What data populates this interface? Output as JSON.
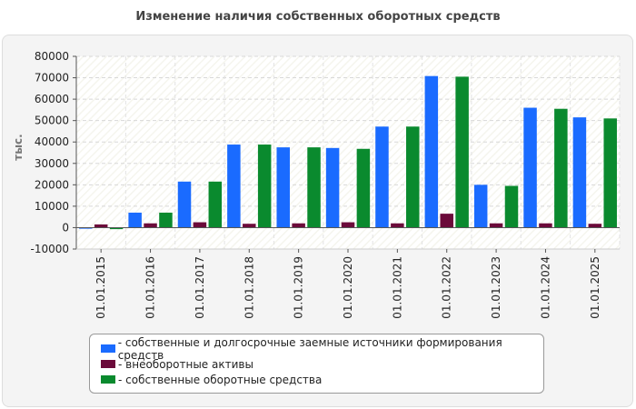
{
  "chart_data": {
    "type": "bar",
    "title": "Изменение наличия собственных оборотных средств",
    "ylabel": "тыс.",
    "xlabel": "",
    "ylim": [
      -10000,
      80000
    ],
    "yticks": [
      -10000,
      0,
      10000,
      20000,
      30000,
      40000,
      50000,
      60000,
      70000,
      80000
    ],
    "categories": [
      "01.01.2015",
      "01.01.2016",
      "01.01.2017",
      "01.01.2018",
      "01.01.2019",
      "01.01.2020",
      "01.01.2021",
      "01.01.2022",
      "01.01.2023",
      "01.01.2024",
      "01.01.2025"
    ],
    "series": [
      {
        "name": "собственные и долгосрочные заемные источники формирования средств",
        "color": "#1a6bff",
        "values": [
          -500,
          7000,
          21500,
          38800,
          37500,
          37200,
          47200,
          70800,
          20000,
          56000,
          51500
        ]
      },
      {
        "name": "внеоборотные активы",
        "color": "#6b0a3a",
        "values": [
          1500,
          2000,
          2500,
          1800,
          2000,
          2500,
          2000,
          6500,
          2000,
          2000,
          1800
        ]
      },
      {
        "name": "собственные оборотные средства",
        "color": "#0a8a2e",
        "values": [
          -700,
          7000,
          21500,
          38800,
          37500,
          36800,
          47200,
          70500,
          19500,
          55500,
          51000
        ]
      }
    ],
    "legend_position": "bottom",
    "grid": true
  }
}
